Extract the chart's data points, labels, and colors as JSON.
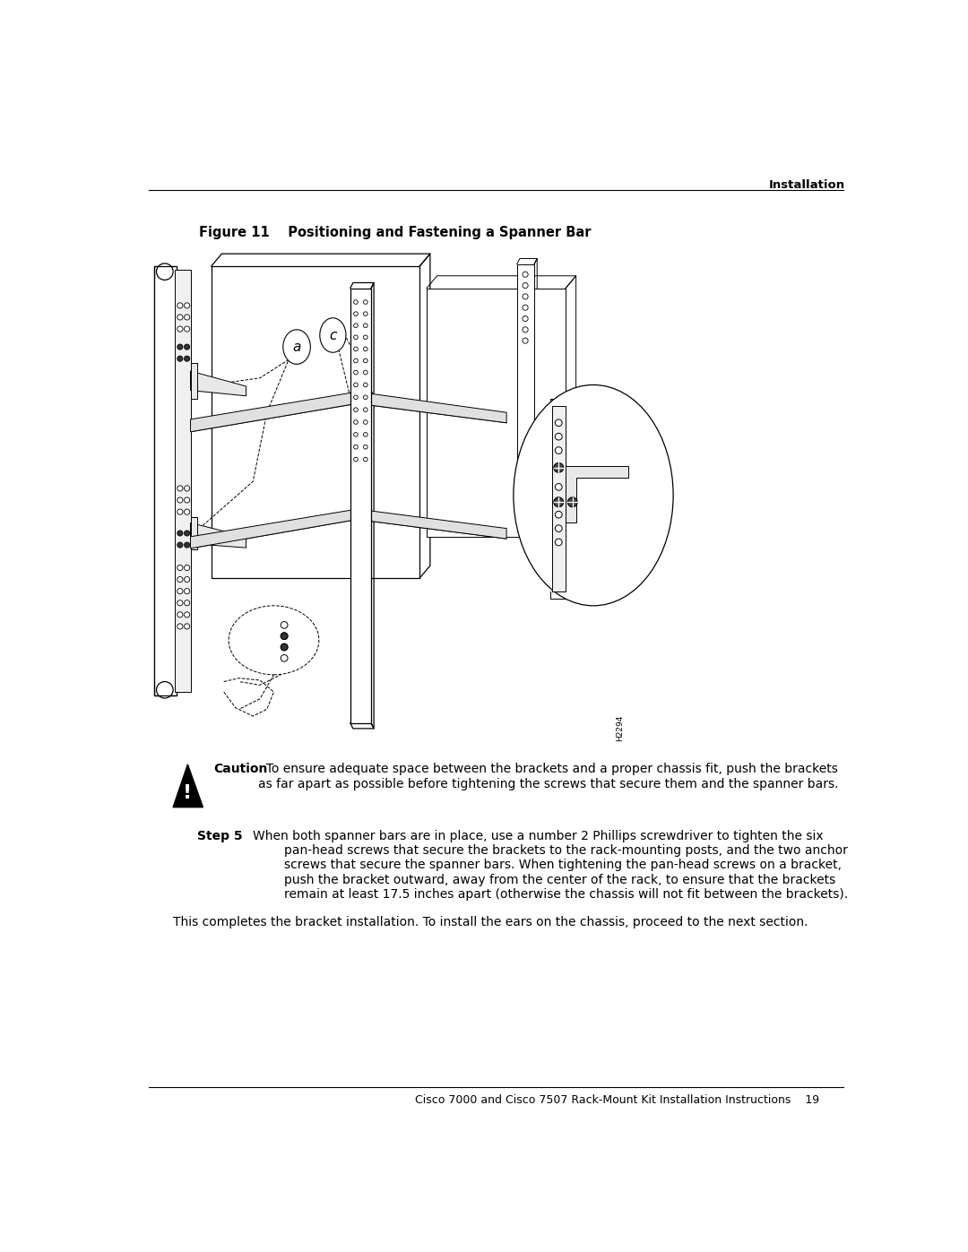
{
  "bg_color": "#ffffff",
  "header_text": "Installation",
  "figure_title": "Figure 11    Positioning and Fastening a Spanner Bar",
  "caution_label": "Caution",
  "caution_body": "  To ensure adequate space between the brackets and a proper chassis fit, push the brackets\nas far apart as possible before tightening the screws that secure them and the spanner bars.",
  "step5_label": "Step 5",
  "step5_body_line1": "When both spanner bars are in place, use a number 2 Phillips screwdriver to tighten the six",
  "step5_body_line2": "pan-head screws that secure the brackets to the rack-mounting posts, and the two anchor",
  "step5_body_line3": "screws that secure the spanner bars. When tightening the pan-head screws on a bracket,",
  "step5_body_line4": "push the bracket outward, away from the center of the rack, to ensure that the brackets",
  "step5_body_line5": "remain at least 17.5 inches apart (otherwise the chassis will not fit between the brackets).",
  "final_text": "This completes the bracket installation. To install the ears on the chassis, proceed to the next section.",
  "footer_text": "Cisco 7000 and Cisco 7507 Rack-Mount Kit Installation Instructions    19",
  "fig_num": "H2294"
}
